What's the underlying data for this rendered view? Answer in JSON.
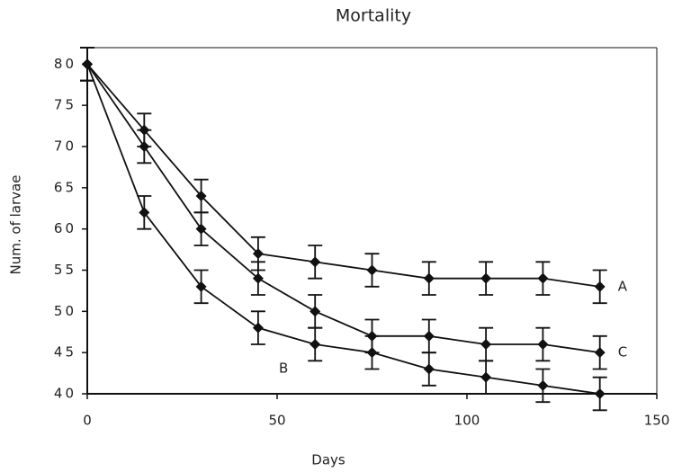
{
  "chart_data": {
    "type": "line",
    "title": "Mortality",
    "x_label": "Days",
    "y_label": "Num. of larvae",
    "x": [
      0,
      15,
      30,
      45,
      60,
      75,
      90,
      105,
      120,
      135
    ],
    "series": [
      {
        "name": "A",
        "color": "#111111",
        "values": [
          80,
          72,
          64,
          57,
          56,
          55,
          54,
          54,
          54,
          53
        ],
        "errors": [
          2,
          2,
          2,
          2,
          2,
          2,
          2,
          2,
          2,
          2
        ]
      },
      {
        "name": "B",
        "color": "#111111",
        "values": [
          80,
          62,
          53,
          48,
          46,
          45,
          43,
          42,
          41,
          40
        ],
        "errors": [
          2,
          2,
          2,
          2,
          2,
          2,
          2,
          2,
          2,
          2
        ]
      },
      {
        "name": "C",
        "color": "#111111",
        "values": [
          80,
          70,
          60,
          54,
          50,
          47,
          47,
          46,
          46,
          45
        ],
        "errors": [
          2,
          2,
          2,
          2,
          2,
          2,
          2,
          2,
          2,
          2
        ]
      }
    ],
    "xlim": [
      0,
      150
    ],
    "xticks": [
      0,
      50,
      100,
      150
    ],
    "ylim": [
      40,
      82
    ],
    "yticks": [
      40,
      45,
      50,
      55,
      60,
      65,
      70,
      75,
      80
    ]
  }
}
